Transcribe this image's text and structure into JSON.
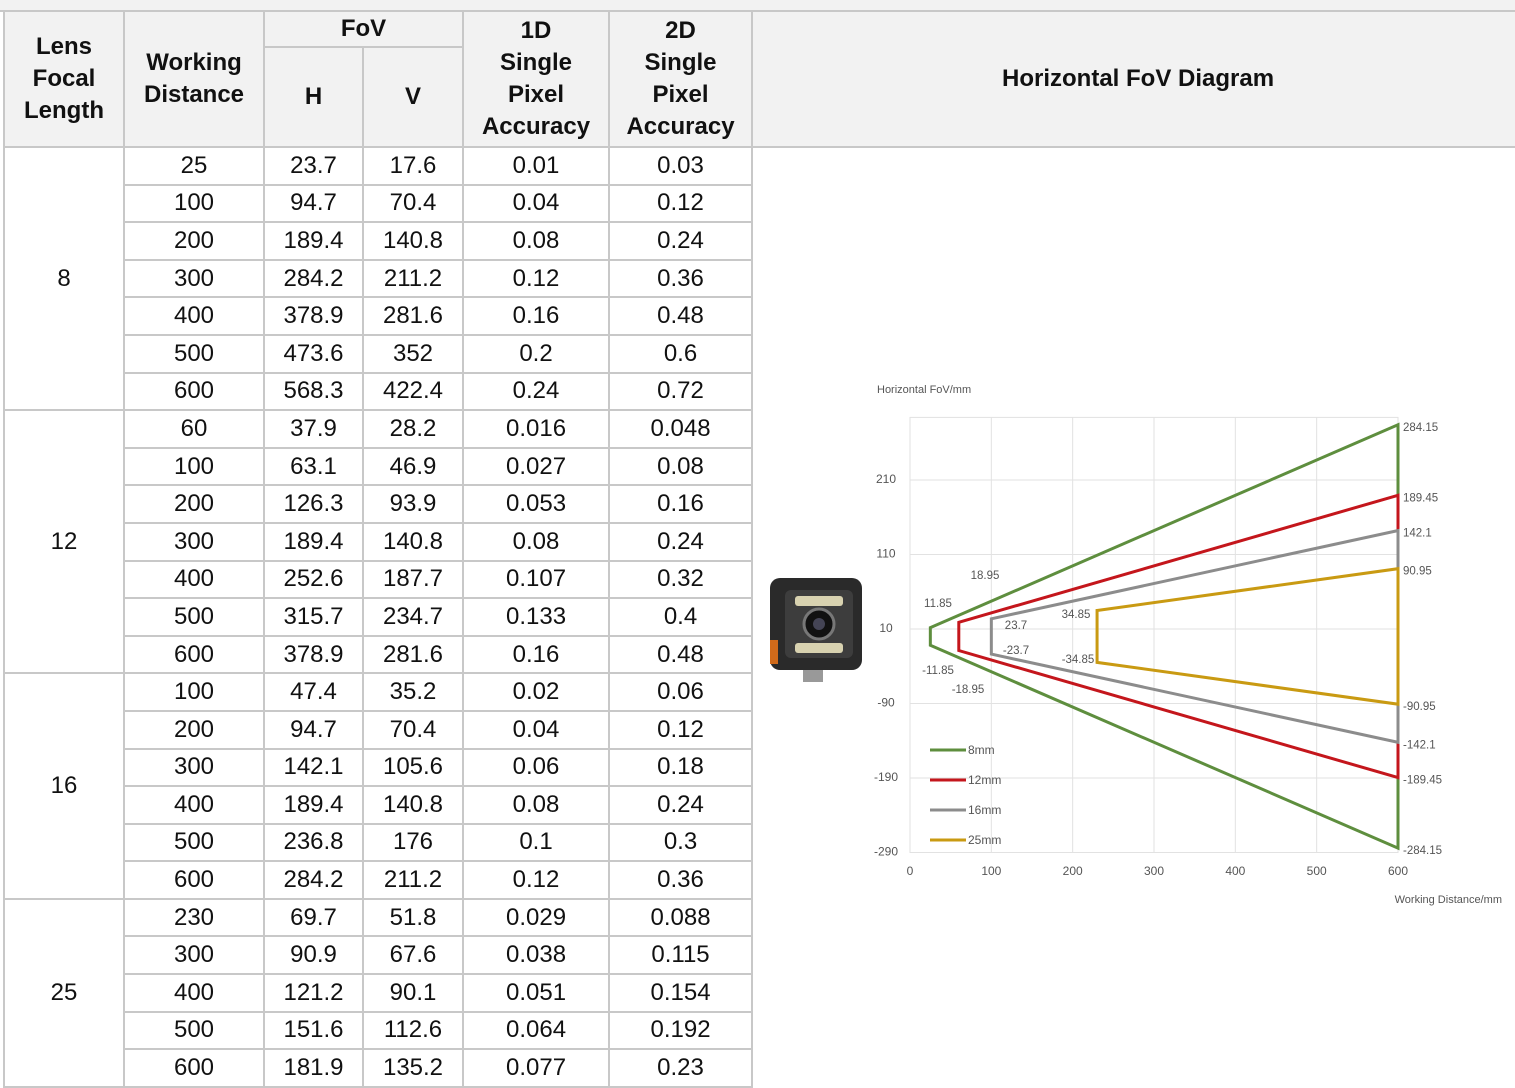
{
  "table": {
    "header": {
      "lens": "Lens Focal Length",
      "distance": "Working Distance",
      "fov": "FoV",
      "h": "H",
      "v": "V",
      "acc1d": "1D Single Pixel Accuracy",
      "acc2d": "2D Single Pixel Accuracy",
      "diagram": "Horizontal FoV Diagram"
    },
    "groups": [
      {
        "focal_length": "8",
        "rows": [
          [
            "25",
            "23.7",
            "17.6",
            "0.01",
            "0.03"
          ],
          [
            "100",
            "94.7",
            "70.4",
            "0.04",
            "0.12"
          ],
          [
            "200",
            "189.4",
            "140.8",
            "0.08",
            "0.24"
          ],
          [
            "300",
            "284.2",
            "211.2",
            "0.12",
            "0.36"
          ],
          [
            "400",
            "378.9",
            "281.6",
            "0.16",
            "0.48"
          ],
          [
            "500",
            "473.6",
            "352",
            "0.2",
            "0.6"
          ],
          [
            "600",
            "568.3",
            "422.4",
            "0.24",
            "0.72"
          ]
        ]
      },
      {
        "focal_length": "12",
        "rows": [
          [
            "60",
            "37.9",
            "28.2",
            "0.016",
            "0.048"
          ],
          [
            "100",
            "63.1",
            "46.9",
            "0.027",
            "0.08"
          ],
          [
            "200",
            "126.3",
            "93.9",
            "0.053",
            "0.16"
          ],
          [
            "300",
            "189.4",
            "140.8",
            "0.08",
            "0.24"
          ],
          [
            "400",
            "252.6",
            "187.7",
            "0.107",
            "0.32"
          ],
          [
            "500",
            "315.7",
            "234.7",
            "0.133",
            "0.4"
          ],
          [
            "600",
            "378.9",
            "281.6",
            "0.16",
            "0.48"
          ]
        ]
      },
      {
        "focal_length": "16",
        "rows": [
          [
            "100",
            "47.4",
            "35.2",
            "0.02",
            "0.06"
          ],
          [
            "200",
            "94.7",
            "70.4",
            "0.04",
            "0.12"
          ],
          [
            "300",
            "142.1",
            "105.6",
            "0.06",
            "0.18"
          ],
          [
            "400",
            "189.4",
            "140.8",
            "0.08",
            "0.24"
          ],
          [
            "500",
            "236.8",
            "176",
            "0.1",
            "0.3"
          ],
          [
            "600",
            "284.2",
            "211.2",
            "0.12",
            "0.36"
          ]
        ]
      },
      {
        "focal_length": "25",
        "rows": [
          [
            "230",
            "69.7",
            "51.8",
            "0.029",
            "0.088"
          ],
          [
            "300",
            "90.9",
            "67.6",
            "0.038",
            "0.115"
          ],
          [
            "400",
            "121.2",
            "90.1",
            "0.051",
            "0.154"
          ],
          [
            "500",
            "151.6",
            "112.6",
            "0.064",
            "0.192"
          ],
          [
            "600",
            "181.9",
            "135.2",
            "0.077",
            "0.23"
          ]
        ]
      }
    ]
  },
  "chart_data": {
    "type": "line",
    "y_label": "Horizontal FoV/mm",
    "x_label": "Working Distance/mm",
    "xlim": [
      0,
      600
    ],
    "xticks": [
      0,
      100,
      200,
      300,
      400,
      500,
      600
    ],
    "ylim": [
      -290,
      294
    ],
    "yticks": [
      210,
      110,
      10,
      -90,
      -190,
      -290
    ],
    "grid": true,
    "legend": "lower left",
    "series": [
      {
        "name": "8mm",
        "color": "#5e8e3e",
        "x": [
          25,
          600,
          600,
          25
        ],
        "values": [
          11.85,
          284.15,
          -284.15,
          -11.85
        ]
      },
      {
        "name": "12mm",
        "color": "#c4161c",
        "x": [
          60,
          600,
          600,
          60
        ],
        "values": [
          18.95,
          189.45,
          -189.45,
          -18.95
        ]
      },
      {
        "name": "16mm",
        "color": "#8c8c8c",
        "x": [
          100,
          600,
          600,
          100
        ],
        "values": [
          23.7,
          142.1,
          -142.1,
          -23.7
        ]
      },
      {
        "name": "25mm",
        "color": "#c99a12",
        "x": [
          230,
          600,
          600,
          230
        ],
        "values": [
          34.85,
          90.95,
          -90.95,
          -34.85
        ]
      }
    ]
  }
}
